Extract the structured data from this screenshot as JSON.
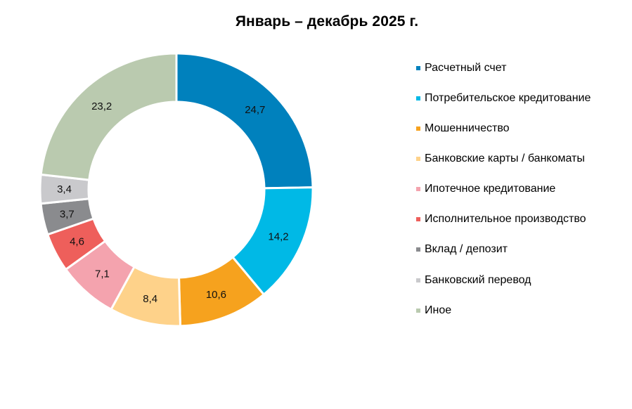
{
  "title": "Январь – декабрь 2025 г.",
  "chart_data": {
    "type": "pie",
    "variant": "donut",
    "title": "Январь – декабрь 2025 г.",
    "categories": [
      "Расчетный счет",
      "Потребительское кредитование",
      "Мошенничество",
      "Банковские карты / банкоматы",
      "Ипотечное кредитование",
      "Исполнительное производство",
      "Вклад / депозит",
      "Банковский перевод",
      "Иное"
    ],
    "values": [
      24.7,
      14.2,
      10.6,
      8.4,
      7.1,
      4.6,
      3.7,
      3.4,
      23.2
    ],
    "value_labels": [
      "24,7",
      "14,2",
      "10,6",
      "8,4",
      "7,1",
      "4,6",
      "3,7",
      "3,4",
      "23,2"
    ],
    "colors": [
      "#0081BD",
      "#00B9E6",
      "#F6A21E",
      "#FED28A",
      "#F4A3AE",
      "#EE5F5B",
      "#8A8B8E",
      "#C9C9CC",
      "#BACAAF"
    ],
    "start_angle_deg": 0,
    "direction": "clockwise",
    "legend_position": "right"
  },
  "legend": {
    "items": [
      {
        "label": "Расчетный счет",
        "color": "#0081BD"
      },
      {
        "label": "Потребительское кредитование",
        "color": "#00B9E6"
      },
      {
        "label": "Мошенничество",
        "color": "#F6A21E"
      },
      {
        "label": "Банковские карты / банкоматы",
        "color": "#FED28A"
      },
      {
        "label": "Ипотечное кредитование",
        "color": "#F4A3AE"
      },
      {
        "label": "Исполнительное производство",
        "color": "#EE5F5B"
      },
      {
        "label": "Вклад / депозит",
        "color": "#8A8B8E"
      },
      {
        "label": "Банковский перевод",
        "color": "#C9C9CC"
      },
      {
        "label": "Иное",
        "color": "#BACAAF"
      }
    ]
  }
}
